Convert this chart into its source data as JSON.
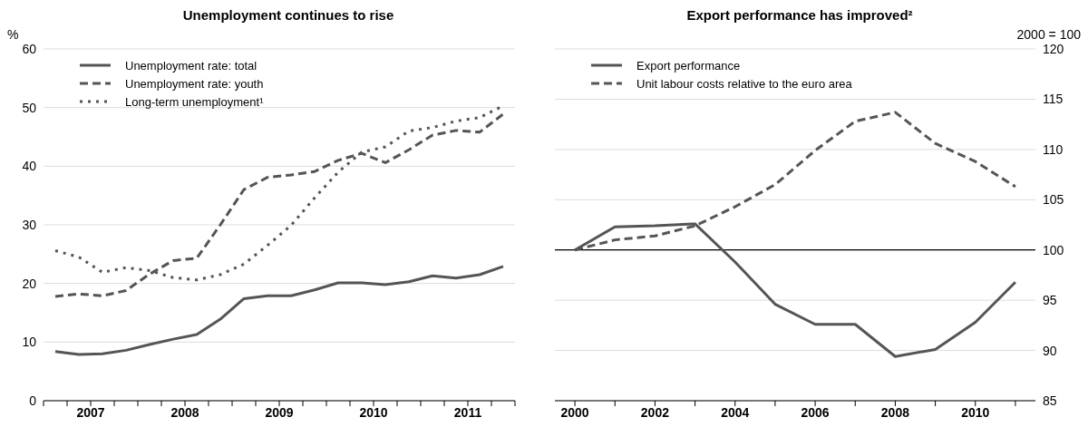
{
  "chart_data": [
    {
      "type": "line",
      "title": "Unemployment continues to rise",
      "ylabel": "%",
      "x": [
        2007.125,
        2007.375,
        2007.625,
        2007.875,
        2008.125,
        2008.375,
        2008.625,
        2008.875,
        2009.125,
        2009.375,
        2009.625,
        2009.875,
        2010.125,
        2010.375,
        2010.625,
        2010.875,
        2011.125,
        2011.375,
        2011.625,
        2011.875
      ],
      "xlim": [
        2007,
        2012
      ],
      "xticks": [
        {
          "value": 2007,
          "label": null
        },
        {
          "value": 2007.25,
          "label": null
        },
        {
          "value": 2007.5,
          "label": "2007"
        },
        {
          "value": 2007.75,
          "label": null
        },
        {
          "value": 2008,
          "label": null
        },
        {
          "value": 2008.25,
          "label": null
        },
        {
          "value": 2008.5,
          "label": "2008"
        },
        {
          "value": 2008.75,
          "label": null
        },
        {
          "value": 2009,
          "label": null
        },
        {
          "value": 2009.25,
          "label": null
        },
        {
          "value": 2009.5,
          "label": "2009"
        },
        {
          "value": 2009.75,
          "label": null
        },
        {
          "value": 2010,
          "label": null
        },
        {
          "value": 2010.25,
          "label": null
        },
        {
          "value": 2010.5,
          "label": "2010"
        },
        {
          "value": 2010.75,
          "label": null
        },
        {
          "value": 2011,
          "label": null
        },
        {
          "value": 2011.25,
          "label": null
        },
        {
          "value": 2011.5,
          "label": "2011"
        },
        {
          "value": 2011.75,
          "label": null
        },
        {
          "value": 2012,
          "label": null
        }
      ],
      "ylim": [
        0,
        60
      ],
      "yticks": [
        0,
        10,
        20,
        30,
        40,
        50,
        60
      ],
      "grid": "y",
      "legend": "top left",
      "series": [
        {
          "name": "Unemployment rate: total",
          "color": "#555555",
          "line_style": "solid",
          "values": [
            8.4,
            7.9,
            8.0,
            8.6,
            9.6,
            10.5,
            11.3,
            13.9,
            17.4,
            17.9,
            17.9,
            18.9,
            20.1,
            20.1,
            19.8,
            20.3,
            21.3,
            20.9,
            21.5,
            22.9
          ]
        },
        {
          "name": "Unemployment rate: youth",
          "color": "#555555",
          "line_style": "dashed",
          "values": [
            17.8,
            18.2,
            17.9,
            18.8,
            21.6,
            23.9,
            24.3,
            30.0,
            36.0,
            38.1,
            38.5,
            39.1,
            41.0,
            42.2,
            40.6,
            42.8,
            45.3,
            46.1,
            45.8,
            48.9
          ]
        },
        {
          "name": "Long-term unemployment¹",
          "color": "#555555",
          "line_style": "dotted",
          "values": [
            25.6,
            24.5,
            21.9,
            22.7,
            22.2,
            21.0,
            20.6,
            21.5,
            23.3,
            26.5,
            29.9,
            34.6,
            39.0,
            42.4,
            43.3,
            46.0,
            46.6,
            47.7,
            48.3,
            50.3
          ]
        }
      ]
    },
    {
      "type": "line",
      "title": "Export performance has improved²",
      "y2label": "2000 = 100",
      "categories": [
        "2000",
        null,
        "2002",
        null,
        "2004",
        null,
        "2006",
        null,
        "2008",
        null,
        "2010",
        null
      ],
      "y2lim": [
        85,
        120
      ],
      "y2ticks": [
        85,
        90,
        95,
        100,
        105,
        110,
        115,
        120
      ],
      "grid": "y",
      "legend": "top left",
      "ref_lines": [
        {
          "axis": "y2",
          "value": 100,
          "color": "#000000"
        }
      ],
      "series": [
        {
          "name": "Export performance",
          "color": "#555555",
          "line_style": "solid",
          "axis": "y2",
          "values": [
            100,
            102.3,
            102.4,
            102.6,
            98.8,
            94.6,
            92.6,
            92.6,
            89.4,
            90.1,
            92.8,
            96.8
          ]
        },
        {
          "name": "Unit labour costs relative to the euro area",
          "color": "#555555",
          "line_style": "dashed",
          "axis": "y2",
          "values": [
            100,
            101.0,
            101.4,
            102.4,
            104.3,
            106.5,
            109.9,
            112.8,
            113.7,
            110.6,
            108.8,
            106.3
          ]
        }
      ]
    }
  ]
}
